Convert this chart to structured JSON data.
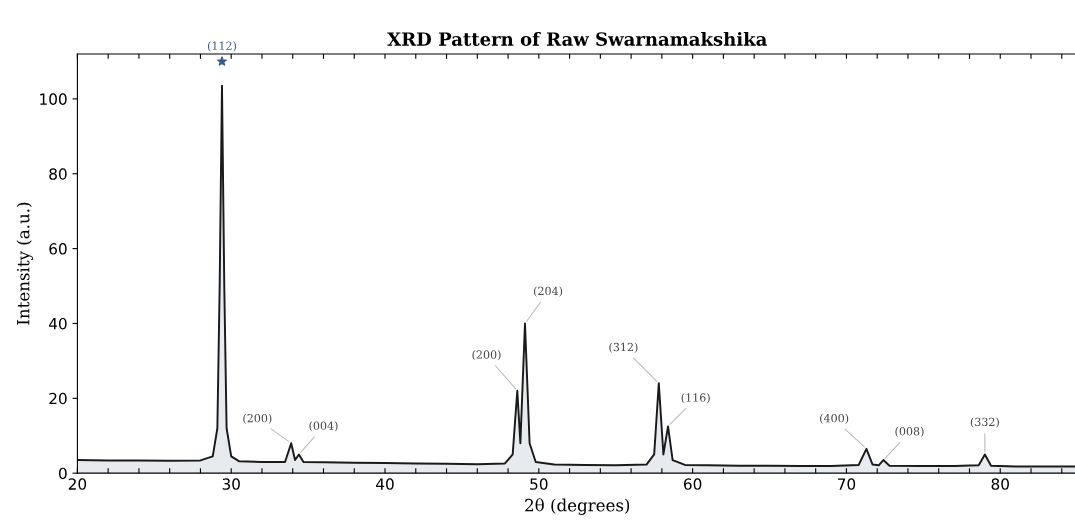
{
  "chart_data": {
    "type": "area",
    "title": "XRD Pattern of Raw Swarnamakshika",
    "xlabel": "2θ (degrees)",
    "ylabel": "Intensity (a.u.)",
    "xlim": [
      20,
      85
    ],
    "ylim": [
      0,
      112
    ],
    "xticks": [
      20,
      {
        "value": 22,
        "label": null
      },
      {
        "value": 24,
        "label": null
      },
      {
        "value": 26,
        "label": null
      },
      {
        "value": 28,
        "label": null
      },
      30,
      {
        "value": 32,
        "label": null
      },
      {
        "value": 34,
        "label": null
      },
      {
        "value": 36,
        "label": null
      },
      {
        "value": 38,
        "label": null
      },
      40,
      {
        "value": 42,
        "label": null
      },
      {
        "value": 44,
        "label": null
      },
      {
        "value": 46,
        "label": null
      },
      {
        "value": 48,
        "label": null
      },
      50,
      {
        "value": 52,
        "label": null
      },
      {
        "value": 54,
        "label": null
      },
      {
        "value": 56,
        "label": null
      },
      {
        "value": 58,
        "label": null
      },
      60,
      {
        "value": 62,
        "label": null
      },
      {
        "value": 64,
        "label": null
      },
      {
        "value": 66,
        "label": null
      },
      {
        "value": 68,
        "label": null
      },
      70,
      {
        "value": 72,
        "label": null
      },
      {
        "value": 74,
        "label": null
      },
      {
        "value": 76,
        "label": null
      },
      {
        "value": 78,
        "label": null
      },
      80,
      {
        "value": 82,
        "label": null
      },
      {
        "value": 84,
        "label": null
      }
    ],
    "yticks": [
      0,
      20,
      40,
      60,
      80,
      100
    ],
    "grid": false,
    "legend": false,
    "series": [
      {
        "color": "#1a1a1a",
        "marker": "none",
        "line_style": "solid",
        "x": [
          20,
          22,
          24,
          26,
          28,
          28.8,
          29.1,
          29.25,
          29.4,
          29.55,
          29.7,
          30,
          30.5,
          32,
          33.5,
          33.9,
          34.15,
          34.4,
          34.7,
          36,
          38,
          40,
          42,
          44,
          46,
          47.8,
          48.3,
          48.6,
          48.8,
          49.1,
          49.4,
          49.8,
          51,
          53,
          55,
          57,
          57.5,
          57.8,
          58.1,
          58.4,
          58.7,
          59.5,
          61,
          63,
          65,
          67,
          69,
          70.8,
          71.3,
          71.7,
          72.1,
          72.4,
          72.8,
          75,
          77,
          78.6,
          79,
          79.4,
          81,
          83,
          85
        ],
        "values": [
          3.5,
          3.4,
          3.4,
          3.3,
          3.4,
          4.5,
          12,
          50,
          103.5,
          50,
          12,
          4.5,
          3.2,
          3.0,
          3.0,
          8,
          3.5,
          5,
          3.0,
          2.9,
          2.8,
          2.7,
          2.6,
          2.5,
          2.4,
          2.6,
          5,
          22,
          8,
          40,
          8,
          3,
          2.3,
          2.2,
          2.1,
          2.3,
          5,
          24,
          5,
          12.5,
          3.5,
          2.2,
          2.1,
          2.0,
          2.0,
          1.9,
          1.9,
          2.2,
          6.5,
          2.3,
          2.1,
          3.5,
          2.0,
          1.9,
          1.9,
          2.1,
          5,
          2.0,
          1.8,
          1.8,
          1.8
        ]
      },
      {
        "type": "scatter",
        "color": "#3a5a8a",
        "marker": "star",
        "x": [
          29.4
        ],
        "values": [
          110
        ]
      }
    ],
    "annotations": [
      {
        "text": "(112)",
        "x": 29.4,
        "y": 110
      },
      {
        "text": "(200)",
        "x": 33.9,
        "y": 8
      },
      {
        "text": "(004)",
        "x": 34.4,
        "y": 5
      },
      {
        "text": "(200)",
        "x": 48.6,
        "y": 22
      },
      {
        "text": "(204)",
        "x": 49.1,
        "y": 40
      },
      {
        "text": "(312)",
        "x": 57.8,
        "y": 24
      },
      {
        "text": "(116)",
        "x": 58.4,
        "y": 12.5
      },
      {
        "text": "(400)",
        "x": 71.3,
        "y": 6.5
      },
      {
        "text": "(008)",
        "x": 72.4,
        "y": 3.5
      },
      {
        "text": "(332)",
        "x": 79,
        "y": 5
      }
    ]
  }
}
